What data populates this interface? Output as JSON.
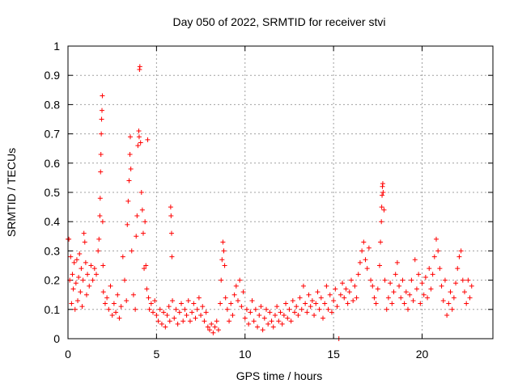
{
  "chart_data": {
    "type": "scatter",
    "title": "Day 050 of 2022, SRMTID for receiver stvi",
    "xlabel": "GPS time / hours",
    "ylabel": "SRMTID / TECUs",
    "xlim": [
      0,
      24
    ],
    "ylim": [
      0,
      1
    ],
    "xticks": [
      0,
      5,
      10,
      15,
      20
    ],
    "xtick_labels": [
      "0",
      "5",
      "10",
      "15",
      "20"
    ],
    "yticks": [
      0,
      0.1,
      0.2,
      0.3,
      0.4,
      0.5,
      0.6,
      0.7,
      0.8,
      0.9,
      1
    ],
    "ytick_labels": [
      "0",
      "0.1",
      "0.2",
      "0.3",
      "0.4",
      "0.5",
      "0.6",
      "0.7",
      "0.8",
      "0.9",
      "1"
    ],
    "grid": true,
    "marker": "plus",
    "series": [
      {
        "name": "SRMTID",
        "color": "#ff0000",
        "points": [
          [
            0.0,
            0.34
          ],
          [
            0.05,
            0.34
          ],
          [
            0.1,
            0.2
          ],
          [
            0.15,
            0.28
          ],
          [
            0.2,
            0.12
          ],
          [
            0.25,
            0.22
          ],
          [
            0.3,
            0.17
          ],
          [
            0.35,
            0.26
          ],
          [
            0.4,
            0.1
          ],
          [
            0.45,
            0.19
          ],
          [
            0.5,
            0.27
          ],
          [
            0.55,
            0.13
          ],
          [
            0.6,
            0.21
          ],
          [
            0.65,
            0.29
          ],
          [
            0.7,
            0.16
          ],
          [
            0.75,
            0.24
          ],
          [
            0.8,
            0.11
          ],
          [
            0.85,
            0.2
          ],
          [
            0.9,
            0.36
          ],
          [
            0.95,
            0.33
          ],
          [
            1.0,
            0.26
          ],
          [
            1.05,
            0.15
          ],
          [
            1.1,
            0.22
          ],
          [
            1.2,
            0.18
          ],
          [
            1.3,
            0.25
          ],
          [
            1.4,
            0.2
          ],
          [
            1.5,
            0.24
          ],
          [
            1.6,
            0.22
          ],
          [
            1.7,
            0.3
          ],
          [
            1.75,
            0.34
          ],
          [
            1.8,
            0.42
          ],
          [
            1.82,
            0.48
          ],
          [
            1.84,
            0.57
          ],
          [
            1.86,
            0.63
          ],
          [
            1.88,
            0.7
          ],
          [
            1.9,
            0.75
          ],
          [
            1.92,
            0.78
          ],
          [
            1.94,
            0.83
          ],
          [
            1.96,
            0.4
          ],
          [
            1.98,
            0.25
          ],
          [
            2.0,
            0.16
          ],
          [
            2.1,
            0.12
          ],
          [
            2.2,
            0.14
          ],
          [
            2.3,
            0.1
          ],
          [
            2.4,
            0.18
          ],
          [
            2.5,
            0.08
          ],
          [
            2.6,
            0.12
          ],
          [
            2.7,
            0.09
          ],
          [
            2.8,
            0.15
          ],
          [
            2.9,
            0.07
          ],
          [
            3.0,
            0.11
          ],
          [
            3.1,
            0.28
          ],
          [
            3.2,
            0.2
          ],
          [
            3.3,
            0.13
          ],
          [
            3.35,
            0.39
          ],
          [
            3.4,
            0.47
          ],
          [
            3.45,
            0.54
          ],
          [
            3.5,
            0.63
          ],
          [
            3.52,
            0.69
          ],
          [
            3.55,
            0.58
          ],
          [
            3.6,
            0.3
          ],
          [
            3.7,
            0.15
          ],
          [
            3.8,
            0.1
          ],
          [
            3.85,
            0.35
          ],
          [
            3.9,
            0.42
          ],
          [
            3.95,
            0.66
          ],
          [
            4.0,
            0.71
          ],
          [
            4.02,
            0.69
          ],
          [
            4.04,
            0.92
          ],
          [
            4.06,
            0.93
          ],
          [
            4.1,
            0.67
          ],
          [
            4.15,
            0.5
          ],
          [
            4.2,
            0.44
          ],
          [
            4.25,
            0.36
          ],
          [
            4.3,
            0.24
          ],
          [
            4.35,
            0.4
          ],
          [
            4.4,
            0.25
          ],
          [
            4.45,
            0.17
          ],
          [
            4.5,
            0.68
          ],
          [
            4.55,
            0.14
          ],
          [
            4.6,
            0.1
          ],
          [
            4.7,
            0.12
          ],
          [
            4.8,
            0.09
          ],
          [
            4.9,
            0.13
          ],
          [
            5.0,
            0.08
          ],
          [
            5.1,
            0.06
          ],
          [
            5.2,
            0.1
          ],
          [
            5.3,
            0.05
          ],
          [
            5.4,
            0.09
          ],
          [
            5.5,
            0.04
          ],
          [
            5.6,
            0.08
          ],
          [
            5.7,
            0.11
          ],
          [
            5.75,
            0.06
          ],
          [
            5.8,
            0.45
          ],
          [
            5.82,
            0.42
          ],
          [
            5.85,
            0.36
          ],
          [
            5.87,
            0.28
          ],
          [
            5.9,
            0.13
          ],
          [
            6.0,
            0.07
          ],
          [
            6.1,
            0.1
          ],
          [
            6.2,
            0.05
          ],
          [
            6.3,
            0.09
          ],
          [
            6.4,
            0.12
          ],
          [
            6.5,
            0.06
          ],
          [
            6.6,
            0.1
          ],
          [
            6.7,
            0.08
          ],
          [
            6.8,
            0.13
          ],
          [
            6.9,
            0.06
          ],
          [
            7.0,
            0.09
          ],
          [
            7.1,
            0.12
          ],
          [
            7.2,
            0.07
          ],
          [
            7.3,
            0.1
          ],
          [
            7.4,
            0.14
          ],
          [
            7.5,
            0.08
          ],
          [
            7.6,
            0.11
          ],
          [
            7.7,
            0.06
          ],
          [
            7.8,
            0.09
          ],
          [
            7.9,
            0.04
          ],
          [
            8.0,
            0.03
          ],
          [
            8.1,
            0.05
          ],
          [
            8.2,
            0.02
          ],
          [
            8.3,
            0.04
          ],
          [
            8.4,
            0.06
          ],
          [
            8.5,
            0.03
          ],
          [
            8.6,
            0.12
          ],
          [
            8.65,
            0.2
          ],
          [
            8.7,
            0.27
          ],
          [
            8.75,
            0.33
          ],
          [
            8.8,
            0.3
          ],
          [
            8.85,
            0.25
          ],
          [
            8.9,
            0.14
          ],
          [
            9.0,
            0.1
          ],
          [
            9.1,
            0.06
          ],
          [
            9.2,
            0.12
          ],
          [
            9.3,
            0.08
          ],
          [
            9.4,
            0.15
          ],
          [
            9.5,
            0.18
          ],
          [
            9.6,
            0.13
          ],
          [
            9.7,
            0.2
          ],
          [
            9.8,
            0.11
          ],
          [
            9.9,
            0.16
          ],
          [
            10.0,
            0.07
          ],
          [
            10.1,
            0.1
          ],
          [
            10.2,
            0.05
          ],
          [
            10.3,
            0.09
          ],
          [
            10.4,
            0.13
          ],
          [
            10.5,
            0.06
          ],
          [
            10.6,
            0.1
          ],
          [
            10.7,
            0.04
          ],
          [
            10.8,
            0.08
          ],
          [
            10.9,
            0.11
          ],
          [
            11.0,
            0.03
          ],
          [
            11.1,
            0.07
          ],
          [
            11.2,
            0.1
          ],
          [
            11.3,
            0.05
          ],
          [
            11.4,
            0.09
          ],
          [
            11.5,
            0.06
          ],
          [
            11.6,
            0.04
          ],
          [
            11.7,
            0.08
          ],
          [
            11.8,
            0.11
          ],
          [
            11.9,
            0.06
          ],
          [
            12.0,
            0.09
          ],
          [
            12.1,
            0.05
          ],
          [
            12.2,
            0.08
          ],
          [
            12.3,
            0.12
          ],
          [
            12.4,
            0.07
          ],
          [
            12.5,
            0.1
          ],
          [
            12.6,
            0.06
          ],
          [
            12.7,
            0.13
          ],
          [
            12.8,
            0.09
          ],
          [
            12.9,
            0.11
          ],
          [
            13.0,
            0.08
          ],
          [
            13.1,
            0.14
          ],
          [
            13.2,
            0.1
          ],
          [
            13.3,
            0.18
          ],
          [
            13.4,
            0.12
          ],
          [
            13.5,
            0.09
          ],
          [
            13.6,
            0.15
          ],
          [
            13.7,
            0.11
          ],
          [
            13.8,
            0.13
          ],
          [
            13.9,
            0.08
          ],
          [
            14.0,
            0.12
          ],
          [
            14.1,
            0.16
          ],
          [
            14.2,
            0.1
          ],
          [
            14.3,
            0.14
          ],
          [
            14.4,
            0.07
          ],
          [
            14.5,
            0.12
          ],
          [
            14.6,
            0.18
          ],
          [
            14.7,
            0.1
          ],
          [
            14.8,
            0.15
          ],
          [
            14.9,
            0.09
          ],
          [
            15.0,
            0.13
          ],
          [
            15.1,
            0.17
          ],
          [
            15.2,
            0.11
          ],
          [
            15.3,
            0.0
          ],
          [
            15.4,
            0.15
          ],
          [
            15.5,
            0.19
          ],
          [
            15.6,
            0.14
          ],
          [
            15.7,
            0.17
          ],
          [
            15.8,
            0.12
          ],
          [
            15.9,
            0.16
          ],
          [
            16.0,
            0.2
          ],
          [
            16.1,
            0.13
          ],
          [
            16.2,
            0.18
          ],
          [
            16.3,
            0.14
          ],
          [
            16.4,
            0.22
          ],
          [
            16.5,
            0.26
          ],
          [
            16.6,
            0.3
          ],
          [
            16.7,
            0.33
          ],
          [
            16.8,
            0.27
          ],
          [
            16.9,
            0.24
          ],
          [
            17.0,
            0.31
          ],
          [
            17.1,
            0.2
          ],
          [
            17.2,
            0.18
          ],
          [
            17.3,
            0.14
          ],
          [
            17.4,
            0.12
          ],
          [
            17.5,
            0.17
          ],
          [
            17.6,
            0.25
          ],
          [
            17.65,
            0.33
          ],
          [
            17.7,
            0.4
          ],
          [
            17.72,
            0.45
          ],
          [
            17.74,
            0.49
          ],
          [
            17.76,
            0.52
          ],
          [
            17.78,
            0.53
          ],
          [
            17.8,
            0.5
          ],
          [
            17.85,
            0.44
          ],
          [
            17.9,
            0.2
          ],
          [
            18.0,
            0.1
          ],
          [
            18.1,
            0.14
          ],
          [
            18.2,
            0.19
          ],
          [
            18.3,
            0.12
          ],
          [
            18.4,
            0.16
          ],
          [
            18.5,
            0.22
          ],
          [
            18.6,
            0.26
          ],
          [
            18.7,
            0.18
          ],
          [
            18.8,
            0.14
          ],
          [
            18.9,
            0.2
          ],
          [
            19.0,
            0.12
          ],
          [
            19.1,
            0.16
          ],
          [
            19.2,
            0.1
          ],
          [
            19.3,
            0.15
          ],
          [
            19.4,
            0.2
          ],
          [
            19.5,
            0.13
          ],
          [
            19.6,
            0.27
          ],
          [
            19.7,
            0.17
          ],
          [
            19.8,
            0.22
          ],
          [
            19.9,
            0.12
          ],
          [
            20.0,
            0.19
          ],
          [
            20.1,
            0.15
          ],
          [
            20.2,
            0.21
          ],
          [
            20.3,
            0.14
          ],
          [
            20.4,
            0.24
          ],
          [
            20.5,
            0.17
          ],
          [
            20.6,
            0.22
          ],
          [
            20.7,
            0.28
          ],
          [
            20.8,
            0.34
          ],
          [
            20.9,
            0.3
          ],
          [
            21.0,
            0.24
          ],
          [
            21.1,
            0.18
          ],
          [
            21.2,
            0.13
          ],
          [
            21.3,
            0.2
          ],
          [
            21.4,
            0.08
          ],
          [
            21.5,
            0.12
          ],
          [
            21.6,
            0.16
          ],
          [
            21.7,
            0.1
          ],
          [
            21.8,
            0.14
          ],
          [
            21.9,
            0.19
          ],
          [
            22.0,
            0.24
          ],
          [
            22.1,
            0.28
          ],
          [
            22.2,
            0.3
          ],
          [
            22.3,
            0.2
          ],
          [
            22.4,
            0.16
          ],
          [
            22.5,
            0.12
          ],
          [
            22.6,
            0.2
          ],
          [
            22.7,
            0.14
          ],
          [
            22.8,
            0.18
          ]
        ]
      }
    ]
  }
}
